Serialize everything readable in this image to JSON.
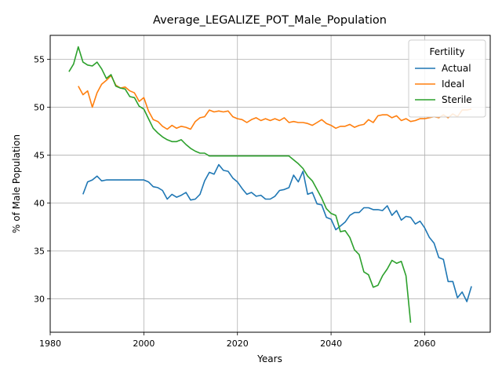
{
  "chart_data": {
    "type": "line",
    "title": "Average_LEGALIZE_POT_Male_Population",
    "xlabel": "Years",
    "ylabel": "% of Male Population",
    "xlim": [
      1980,
      2074
    ],
    "ylim": [
      26.5,
      57.5
    ],
    "xticks": [
      1980,
      2000,
      2020,
      2040,
      2060
    ],
    "yticks": [
      30,
      35,
      40,
      45,
      50,
      55
    ],
    "grid": true,
    "legend": {
      "title": "Fertility",
      "position": "top-right"
    },
    "series": [
      {
        "name": "Actual",
        "color": "#1f77b4",
        "x": [
          1987,
          1988,
          1989,
          1990,
          1991,
          1992,
          1993,
          1994,
          1995,
          1996,
          1997,
          1998,
          1999,
          2000,
          2001,
          2002,
          2003,
          2004,
          2005,
          2006,
          2007,
          2008,
          2009,
          2010,
          2011,
          2012,
          2013,
          2014,
          2015,
          2016,
          2017,
          2018,
          2019,
          2020,
          2021,
          2022,
          2023,
          2024,
          2025,
          2026,
          2027,
          2028,
          2029,
          2030,
          2031,
          2032,
          2033,
          2034,
          2035,
          2036,
          2037,
          2038,
          2039,
          2040,
          2041,
          2042,
          2043,
          2044,
          2045,
          2046,
          2047,
          2048,
          2049,
          2050,
          2051,
          2052,
          2053,
          2054,
          2055,
          2056,
          2057,
          2058,
          2059,
          2060,
          2061,
          2062,
          2063,
          2064,
          2065,
          2066,
          2067,
          2068,
          2069,
          2070
        ],
        "y": [
          40.9,
          42.2,
          42.4,
          42.8,
          42.3,
          42.4,
          42.4,
          42.4,
          42.4,
          42.4,
          42.4,
          42.4,
          42.4,
          42.4,
          42.2,
          41.7,
          41.6,
          41.3,
          40.4,
          40.9,
          40.6,
          40.8,
          41.1,
          40.3,
          40.4,
          40.9,
          42.3,
          43.2,
          43.0,
          44.0,
          43.4,
          43.3,
          42.6,
          42.2,
          41.5,
          40.9,
          41.1,
          40.7,
          40.8,
          40.4,
          40.4,
          40.7,
          41.3,
          41.4,
          41.6,
          42.9,
          42.2,
          43.3,
          40.9,
          41.1,
          39.9,
          39.8,
          38.5,
          38.3,
          37.2,
          37.6,
          38.0,
          38.7,
          39.0,
          39.0,
          39.5,
          39.5,
          39.3,
          39.3,
          39.2,
          39.7,
          38.7,
          39.2,
          38.2,
          38.6,
          38.5,
          37.8,
          38.1,
          37.4,
          36.4,
          35.8,
          34.3,
          34.1,
          31.8,
          31.8,
          30.1,
          30.7,
          29.7,
          31.3
        ]
      },
      {
        "name": "Ideal",
        "color": "#ff7f0e",
        "x": [
          1986,
          1987,
          1988,
          1989,
          1990,
          1991,
          1992,
          1993,
          1994,
          1995,
          1996,
          1997,
          1998,
          1999,
          2000,
          2001,
          2002,
          2003,
          2004,
          2005,
          2006,
          2007,
          2008,
          2009,
          2010,
          2011,
          2012,
          2013,
          2014,
          2015,
          2016,
          2017,
          2018,
          2019,
          2020,
          2021,
          2022,
          2023,
          2024,
          2025,
          2026,
          2027,
          2028,
          2029,
          2030,
          2031,
          2032,
          2033,
          2034,
          2035,
          2036,
          2037,
          2038,
          2039,
          2040,
          2041,
          2042,
          2043,
          2044,
          2045,
          2046,
          2047,
          2048,
          2049,
          2050,
          2051,
          2052,
          2053,
          2054,
          2055,
          2056,
          2057,
          2058,
          2059,
          2060,
          2061,
          2062,
          2063,
          2064,
          2065,
          2066,
          2067,
          2068,
          2069,
          2070
        ],
        "y": [
          52.2,
          51.3,
          51.7,
          50.0,
          51.5,
          52.4,
          52.8,
          53.3,
          52.3,
          52.0,
          52.1,
          51.7,
          51.5,
          50.6,
          51.0,
          49.6,
          48.7,
          48.5,
          48.0,
          47.7,
          48.1,
          47.8,
          48.0,
          47.9,
          47.7,
          48.5,
          48.9,
          49.0,
          49.7,
          49.5,
          49.6,
          49.5,
          49.6,
          49.0,
          48.8,
          48.7,
          48.4,
          48.7,
          48.9,
          48.6,
          48.8,
          48.6,
          48.8,
          48.6,
          48.9,
          48.4,
          48.5,
          48.4,
          48.4,
          48.3,
          48.1,
          48.4,
          48.7,
          48.3,
          48.1,
          47.8,
          48.0,
          48.0,
          48.2,
          47.9,
          48.1,
          48.2,
          48.7,
          48.4,
          49.1,
          49.2,
          49.2,
          48.9,
          49.1,
          48.6,
          48.8,
          48.5,
          48.6,
          48.8,
          48.8,
          48.9,
          49.0,
          48.9,
          49.2,
          48.9,
          49.3,
          49.0,
          49.7,
          49.7,
          49.8
        ]
      },
      {
        "name": "Sterile",
        "color": "#2ca02c",
        "x": [
          1984,
          1985,
          1986,
          1987,
          1988,
          1989,
          1990,
          1991,
          1992,
          1993,
          1994,
          1995,
          1996,
          1997,
          1998,
          1999,
          2000,
          2001,
          2002,
          2003,
          2004,
          2005,
          2006,
          2007,
          2008,
          2009,
          2010,
          2011,
          2012,
          2013,
          2014,
          2015,
          2016,
          2017,
          2018,
          2019,
          2020,
          2021,
          2022,
          2023,
          2024,
          2025,
          2026,
          2027,
          2028,
          2029,
          2030,
          2031,
          2032,
          2033,
          2034,
          2035,
          2036,
          2037,
          2038,
          2039,
          2040,
          2041,
          2042,
          2043,
          2044,
          2045,
          2046,
          2047,
          2048,
          2049,
          2050,
          2051,
          2052,
          2053,
          2054,
          2055,
          2056,
          2057
        ],
        "y": [
          53.7,
          54.5,
          56.3,
          54.7,
          54.4,
          54.3,
          54.7,
          54.0,
          53.0,
          53.4,
          52.2,
          52.0,
          51.9,
          51.1,
          51.0,
          50.1,
          49.8,
          48.8,
          47.8,
          47.3,
          46.9,
          46.6,
          46.4,
          46.4,
          46.6,
          46.1,
          45.7,
          45.4,
          45.2,
          45.2,
          44.9,
          44.9,
          44.9,
          44.9,
          44.9,
          44.9,
          44.9,
          44.9,
          44.9,
          44.9,
          44.9,
          44.9,
          44.9,
          44.9,
          44.9,
          44.9,
          44.9,
          44.9,
          44.5,
          44.1,
          43.6,
          42.8,
          42.3,
          41.4,
          40.5,
          39.4,
          38.9,
          38.7,
          37.0,
          37.1,
          36.4,
          35.1,
          34.6,
          32.8,
          32.5,
          31.2,
          31.4,
          32.4,
          33.1,
          34.0,
          33.7,
          33.9,
          32.4,
          27.5
        ]
      }
    ]
  }
}
